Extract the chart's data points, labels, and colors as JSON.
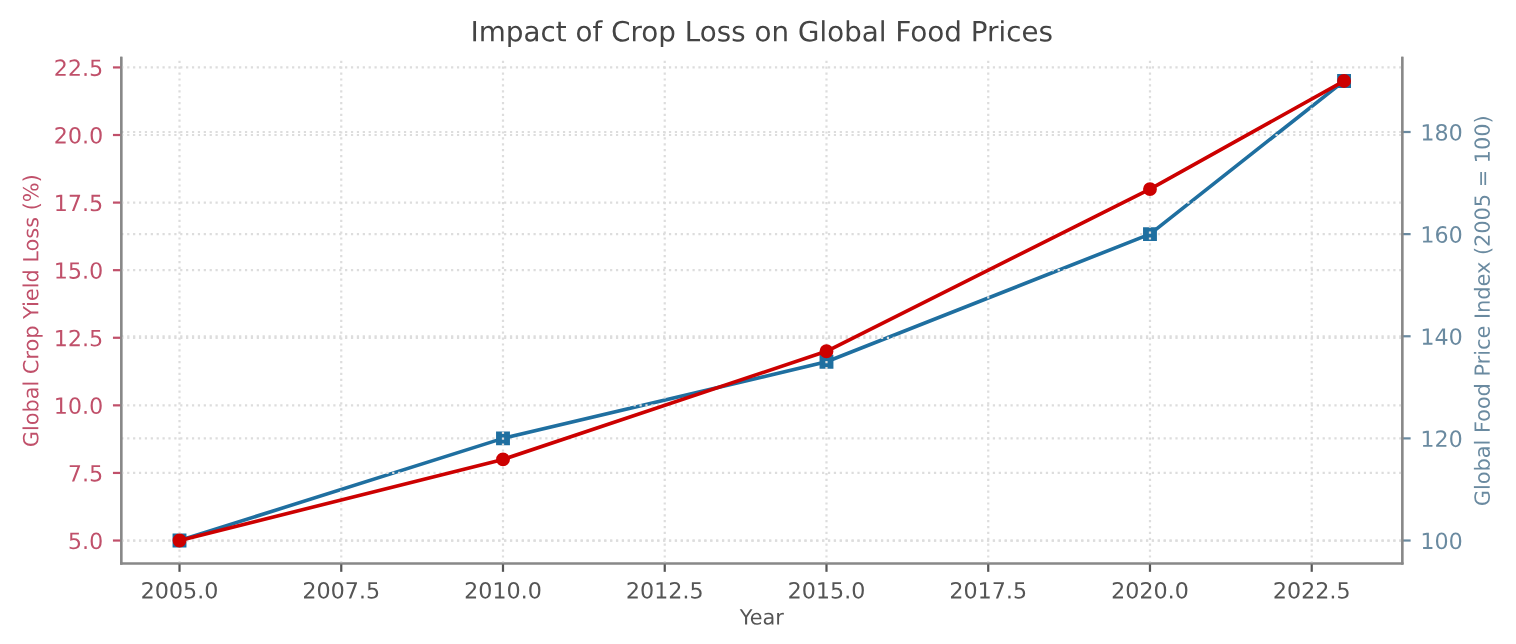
{
  "chart_data": {
    "type": "line",
    "title": "Impact of Crop Loss on Global Food Prices",
    "xlabel": "Year",
    "ylabel": "Global Crop Yield Loss (%)",
    "y2label": "Global Food Price Index (2005 = 100)",
    "x": [
      2005,
      2010,
      2015,
      2020,
      2023
    ],
    "series": [
      {
        "color": "#cc0000",
        "marker": "circle",
        "values": [
          5,
          8,
          12,
          18,
          22
        ]
      },
      {
        "color": "#1f6fa0",
        "marker": "square",
        "axis": "y2",
        "values": [
          100,
          120,
          135,
          160,
          190
        ]
      }
    ],
    "xlim": [
      2004.1,
      2023.9
    ],
    "xticks": [
      {
        "value": 2005,
        "label": "2005.0"
      },
      {
        "value": 2007.5,
        "label": "2007.5"
      },
      {
        "value": 2010,
        "label": "2010.0"
      },
      {
        "value": 2012.5,
        "label": "2012.5"
      },
      {
        "value": 2015,
        "label": "2015.0"
      },
      {
        "value": 2017.5,
        "label": "2017.5"
      },
      {
        "value": 2020,
        "label": "2020.0"
      },
      {
        "value": 2022.5,
        "label": "2022.5"
      }
    ],
    "ylim": [
      4.15,
      22.85
    ],
    "yticks": [
      {
        "value": 5,
        "label": "5.0"
      },
      {
        "value": 7.5,
        "label": "7.5"
      },
      {
        "value": 10,
        "label": "10.0"
      },
      12.5,
      {
        "value": 15,
        "label": "15.0"
      },
      17.5,
      {
        "value": 20,
        "label": "20.0"
      },
      22.5
    ],
    "y2lim": [
      95.5,
      194.5
    ],
    "y2ticks": [
      100,
      120,
      140,
      160,
      180
    ],
    "grid": true,
    "line_style": "solid"
  }
}
